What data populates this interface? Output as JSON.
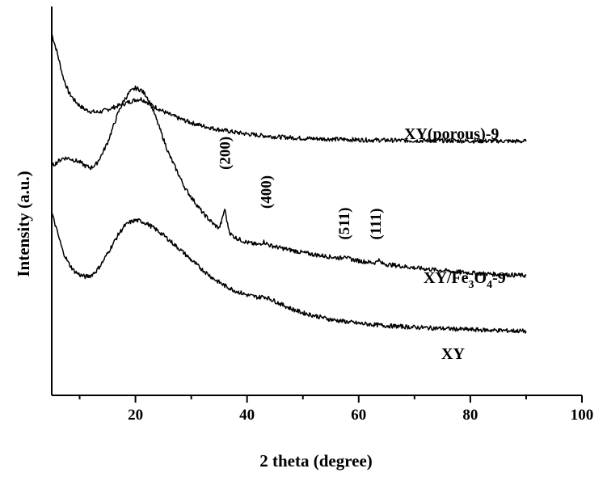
{
  "chart_data": {
    "type": "line",
    "title": "",
    "xlabel": "2 theta (degree)",
    "ylabel": "Intensity (a.u.)",
    "xlim": [
      5,
      100
    ],
    "ylim": [
      0,
      100
    ],
    "xticks": [
      20,
      40,
      60,
      80,
      100
    ],
    "xtick_labels": [
      "20",
      "40",
      "60",
      "80",
      "100"
    ],
    "yticks_shown": false,
    "grid": false,
    "legend": "none",
    "series": [
      {
        "name": "XY(porous)-9",
        "label": "XY(porous)-9",
        "x": [
          5,
          6,
          7,
          8,
          9,
          10,
          11,
          12,
          13,
          14,
          15,
          16,
          17,
          18,
          19,
          20,
          21,
          22,
          23,
          24,
          25,
          26,
          27,
          28,
          30,
          32,
          34,
          36,
          38,
          40,
          42,
          45,
          50,
          55,
          60,
          65,
          70,
          75,
          80,
          85,
          90
        ],
        "values": [
          93,
          88,
          82,
          78,
          76,
          74.5,
          73.5,
          73,
          72.8,
          73,
          73.5,
          74,
          74.5,
          75,
          75.5,
          76,
          76.2,
          75.5,
          74.5,
          73.8,
          73,
          72.3,
          71.7,
          71.1,
          70.1,
          69.3,
          68.6,
          68.1,
          67.6,
          67.2,
          66.9,
          66.5,
          66.1,
          65.9,
          65.7,
          65.6,
          65.5,
          65.5,
          65.4,
          65.4,
          65.3
        ]
      },
      {
        "name": "XY/Fe3O4-9",
        "label_parts": [
          "XY/Fe",
          "3",
          "O",
          "4",
          "-9"
        ],
        "x": [
          5,
          6,
          7,
          8,
          9,
          10,
          11,
          12,
          13,
          14,
          15,
          16,
          17,
          18,
          19,
          20,
          21,
          22,
          23,
          24,
          25,
          26,
          27,
          28,
          29,
          30,
          31,
          32,
          33,
          34,
          35,
          35.5,
          36,
          36.5,
          37,
          38,
          40,
          42,
          43,
          44,
          46,
          48,
          50,
          52,
          54,
          56,
          57,
          57.5,
          58,
          59,
          60,
          62,
          63,
          63.5,
          64,
          65,
          70,
          75,
          80,
          85,
          90
        ],
        "values": [
          59,
          60,
          61,
          61,
          60.5,
          60,
          59,
          58.5,
          59.5,
          62,
          65,
          69,
          73,
          76,
          78,
          79,
          78.5,
          77,
          74,
          70,
          66,
          62,
          59,
          56,
          53,
          51,
          49,
          47,
          45.5,
          44,
          43,
          45,
          48,
          44,
          41.5,
          40.5,
          39.3,
          38.7,
          39.5,
          38.6,
          37.9,
          37.3,
          36.7,
          36.2,
          35.8,
          35.4,
          35.3,
          36.2,
          35.2,
          34.9,
          34.6,
          34.2,
          34.1,
          35,
          34,
          33.7,
          32.8,
          32.1,
          31.5,
          31.1,
          30.8
        ]
      },
      {
        "name": "XY",
        "label": "XY",
        "x": [
          5,
          6,
          7,
          8,
          9,
          10,
          11,
          12,
          13,
          14,
          15,
          16,
          17,
          18,
          19,
          20,
          21,
          22,
          23,
          24,
          25,
          26,
          27,
          28,
          29,
          30,
          32,
          34,
          36,
          38,
          40,
          42,
          43,
          44,
          46,
          48,
          50,
          55,
          60,
          65,
          70,
          75,
          80,
          85,
          90
        ],
        "values": [
          47,
          42,
          37,
          34,
          32,
          31,
          30.5,
          30.8,
          32,
          34,
          36.5,
          39,
          41.5,
          43.5,
          44.5,
          45,
          44.8,
          44.2,
          43.3,
          42.3,
          41.2,
          40,
          38.7,
          37.5,
          36.2,
          34.8,
          32.3,
          30,
          28.2,
          26.8,
          25.8,
          25.2,
          25.4,
          24.9,
          23.5,
          22.2,
          21.2,
          19.5,
          18.5,
          17.9,
          17.5,
          17.2,
          16.9,
          16.7,
          16.5
        ]
      }
    ],
    "annotations": [
      {
        "text": "(200)",
        "x": 35.9,
        "y": 58
      },
      {
        "text": "(400)",
        "x": 43.3,
        "y": 48
      },
      {
        "text": "(511)",
        "x": 57.3,
        "y": 40
      },
      {
        "text": "(111)",
        "x": 62.9,
        "y": 40
      }
    ]
  }
}
